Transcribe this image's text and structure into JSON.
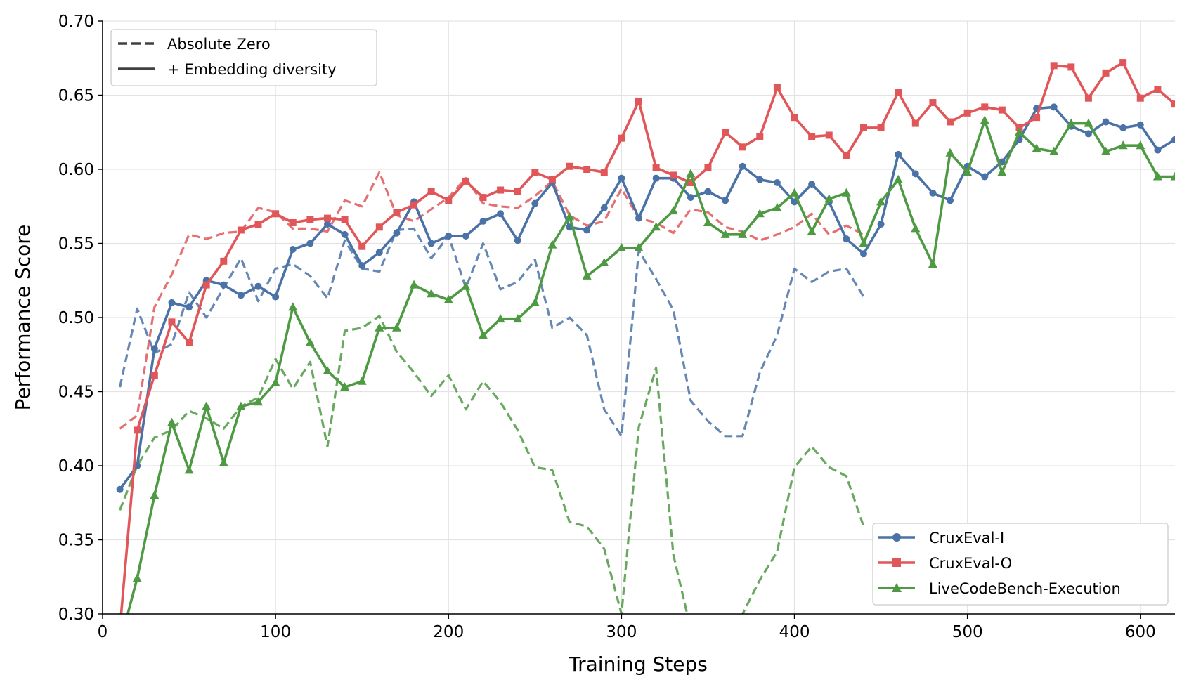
{
  "chart_data": {
    "type": "line",
    "xlabel": "Training Steps",
    "ylabel": "Performance Score",
    "xlim": [
      0,
      620
    ],
    "ylim": [
      0.3,
      0.7
    ],
    "xticks": [
      "0",
      "100",
      "200",
      "300",
      "400",
      "500",
      "600"
    ],
    "yticks": [
      "0.30",
      "0.35",
      "0.40",
      "0.45",
      "0.50",
      "0.55",
      "0.60",
      "0.65",
      "0.70"
    ],
    "grid": true,
    "style_legend": {
      "placement": "top-left",
      "entries": [
        {
          "label": "Absolute Zero",
          "style": "dashed"
        },
        {
          "label": "+ Embedding diversity",
          "style": "solid"
        }
      ]
    },
    "series_legend": {
      "placement": "bottom-right",
      "entries": [
        "CruxEval-I",
        "CruxEval-O",
        "LiveCodeBench-Execution"
      ]
    },
    "series": [
      {
        "name": "CruxEval-I",
        "variant": "+ Embedding diversity",
        "style": "solid",
        "marker": "circle",
        "color": "#4a72a6",
        "x": [
          10,
          20,
          30,
          40,
          50,
          60,
          70,
          80,
          90,
          100,
          110,
          120,
          130,
          140,
          150,
          160,
          170,
          180,
          190,
          200,
          210,
          220,
          230,
          240,
          250,
          260,
          270,
          280,
          290,
          300,
          310,
          320,
          330,
          340,
          350,
          360,
          370,
          380,
          390,
          400,
          410,
          420,
          430,
          440,
          450,
          460,
          470,
          480,
          490,
          500,
          510,
          520,
          530,
          540,
          550,
          560,
          570,
          580,
          590,
          600,
          610,
          620
        ],
        "y": [
          0.384,
          0.4,
          0.479,
          0.51,
          0.507,
          0.525,
          0.522,
          0.515,
          0.521,
          0.514,
          0.546,
          0.55,
          0.563,
          0.556,
          0.535,
          0.544,
          0.557,
          0.578,
          0.55,
          0.555,
          0.555,
          0.565,
          0.57,
          0.552,
          0.577,
          0.591,
          0.561,
          0.559,
          0.574,
          0.594,
          0.567,
          0.594,
          0.594,
          0.581,
          0.585,
          0.579,
          0.602,
          0.593,
          0.591,
          0.578,
          0.59,
          0.578,
          0.553,
          0.543,
          0.563,
          0.61,
          0.597,
          0.584,
          0.579,
          0.602,
          0.595,
          0.605,
          0.62,
          0.641,
          0.642,
          0.629,
          0.624,
          0.632,
          0.628,
          0.63,
          0.613,
          0.62
        ]
      },
      {
        "name": "CruxEval-O",
        "variant": "+ Embedding diversity",
        "style": "solid",
        "marker": "square",
        "color": "#e15759",
        "x": [
          10,
          20,
          30,
          40,
          50,
          60,
          70,
          80,
          90,
          100,
          110,
          120,
          130,
          140,
          150,
          160,
          170,
          180,
          190,
          200,
          210,
          220,
          230,
          240,
          250,
          260,
          270,
          280,
          290,
          300,
          310,
          320,
          330,
          340,
          350,
          360,
          370,
          380,
          390,
          400,
          410,
          420,
          430,
          440,
          450,
          460,
          470,
          480,
          490,
          500,
          510,
          520,
          530,
          540,
          550,
          560,
          570,
          580,
          590,
          600,
          610,
          620
        ],
        "y": [
          0.29,
          0.424,
          0.461,
          0.497,
          0.483,
          0.522,
          0.538,
          0.559,
          0.563,
          0.57,
          0.564,
          0.566,
          0.567,
          0.566,
          0.548,
          0.561,
          0.571,
          0.576,
          0.585,
          0.579,
          0.592,
          0.581,
          0.586,
          0.585,
          0.598,
          0.593,
          0.602,
          0.6,
          0.598,
          0.621,
          0.646,
          0.601,
          0.596,
          0.591,
          0.601,
          0.625,
          0.615,
          0.622,
          0.655,
          0.635,
          0.622,
          0.623,
          0.609,
          0.628,
          0.628,
          0.652,
          0.631,
          0.645,
          0.632,
          0.638,
          0.642,
          0.64,
          0.628,
          0.635,
          0.67,
          0.669,
          0.648,
          0.665,
          0.672,
          0.648,
          0.654,
          0.644
        ]
      },
      {
        "name": "LiveCodeBench-Execution",
        "variant": "+ Embedding diversity",
        "style": "solid",
        "marker": "triangle",
        "color": "#4e9a43",
        "x": [
          10,
          20,
          30,
          40,
          50,
          60,
          70,
          80,
          90,
          100,
          110,
          120,
          130,
          140,
          150,
          160,
          170,
          180,
          190,
          200,
          210,
          220,
          230,
          240,
          250,
          260,
          270,
          280,
          290,
          300,
          310,
          320,
          330,
          340,
          350,
          360,
          370,
          380,
          390,
          400,
          410,
          420,
          430,
          440,
          450,
          460,
          470,
          480,
          490,
          500,
          510,
          520,
          530,
          540,
          550,
          560,
          570,
          580,
          590,
          600,
          610,
          620
        ],
        "y": [
          0.28,
          0.324,
          0.38,
          0.429,
          0.397,
          0.44,
          0.402,
          0.44,
          0.443,
          0.456,
          0.507,
          0.483,
          0.464,
          0.453,
          0.457,
          0.493,
          0.493,
          0.522,
          0.516,
          0.512,
          0.521,
          0.488,
          0.499,
          0.499,
          0.51,
          0.549,
          0.568,
          0.528,
          0.537,
          0.547,
          0.547,
          0.561,
          0.572,
          0.597,
          0.564,
          0.556,
          0.556,
          0.57,
          0.574,
          0.584,
          0.558,
          0.58,
          0.584,
          0.55,
          0.578,
          0.593,
          0.56,
          0.536,
          0.611,
          0.598,
          0.633,
          0.598,
          0.625,
          0.614,
          0.612,
          0.631,
          0.631,
          0.612,
          0.616,
          0.616,
          0.595,
          0.595
        ]
      },
      {
        "name": "CruxEval-I",
        "variant": "Absolute Zero",
        "style": "dashed",
        "color": "#4a72a6",
        "x": [
          10,
          20,
          30,
          40,
          50,
          60,
          70,
          80,
          90,
          100,
          110,
          120,
          130,
          140,
          150,
          160,
          170,
          180,
          190,
          200,
          210,
          220,
          230,
          240,
          250,
          260,
          270,
          280,
          290,
          300,
          310,
          320,
          330,
          340,
          350,
          360,
          370,
          380,
          390,
          400,
          410,
          420,
          430,
          440
        ],
        "y": [
          0.453,
          0.506,
          0.476,
          0.482,
          0.517,
          0.5,
          0.52,
          0.54,
          0.511,
          0.533,
          0.536,
          0.528,
          0.513,
          0.552,
          0.533,
          0.531,
          0.559,
          0.56,
          0.54,
          0.555,
          0.52,
          0.55,
          0.519,
          0.524,
          0.539,
          0.493,
          0.5,
          0.488,
          0.438,
          0.42,
          0.545,
          0.526,
          0.505,
          0.444,
          0.43,
          0.42,
          0.42,
          0.463,
          0.488,
          0.533,
          0.524,
          0.531,
          0.533,
          0.514
        ]
      },
      {
        "name": "CruxEval-O",
        "variant": "Absolute Zero",
        "style": "dashed",
        "color": "#e15759",
        "x": [
          10,
          20,
          30,
          40,
          50,
          60,
          70,
          80,
          90,
          100,
          110,
          120,
          130,
          140,
          150,
          160,
          170,
          180,
          190,
          200,
          210,
          220,
          230,
          240,
          250,
          260,
          270,
          280,
          290,
          300,
          310,
          320,
          330,
          340,
          350,
          360,
          370,
          380,
          390,
          400,
          410,
          420,
          430,
          440
        ],
        "y": [
          0.425,
          0.434,
          0.507,
          0.529,
          0.556,
          0.553,
          0.557,
          0.558,
          0.574,
          0.571,
          0.56,
          0.56,
          0.558,
          0.579,
          0.575,
          0.598,
          0.569,
          0.565,
          0.573,
          0.581,
          0.594,
          0.577,
          0.575,
          0.574,
          0.582,
          0.592,
          0.569,
          0.562,
          0.565,
          0.587,
          0.567,
          0.564,
          0.557,
          0.573,
          0.571,
          0.561,
          0.558,
          0.552,
          0.556,
          0.561,
          0.57,
          0.556,
          0.562,
          0.556
        ]
      },
      {
        "name": "LiveCodeBench-Execution",
        "variant": "Absolute Zero",
        "style": "dashed",
        "color": "#4e9a43",
        "x": [
          10,
          20,
          30,
          40,
          50,
          60,
          70,
          80,
          90,
          100,
          110,
          120,
          130,
          140,
          150,
          160,
          170,
          180,
          190,
          200,
          210,
          220,
          230,
          240,
          250,
          260,
          270,
          280,
          290,
          300,
          310,
          320,
          330,
          340,
          350,
          360,
          370,
          380,
          390,
          400,
          410,
          420,
          430,
          440
        ],
        "y": [
          0.37,
          0.4,
          0.419,
          0.424,
          0.437,
          0.432,
          0.425,
          0.44,
          0.446,
          0.472,
          0.452,
          0.47,
          0.413,
          0.491,
          0.493,
          0.501,
          0.477,
          0.463,
          0.447,
          0.461,
          0.438,
          0.457,
          0.443,
          0.424,
          0.399,
          0.397,
          0.362,
          0.359,
          0.344,
          0.3,
          0.426,
          0.466,
          0.34,
          0.29,
          0.27,
          0.28,
          0.3,
          0.323,
          0.342,
          0.399,
          0.413,
          0.399,
          0.393,
          0.359
        ]
      }
    ]
  }
}
